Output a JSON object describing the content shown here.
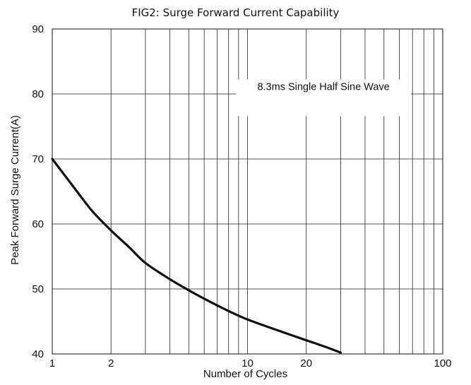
{
  "chart_data": {
    "type": "line",
    "title": "FIG2:  Surge Forward Current Capability",
    "xlabel": "Number of Cycles",
    "ylabel": "Peak Forward Surge Current(A)",
    "x_scale": "log",
    "xlim": [
      1,
      100
    ],
    "ylim": [
      40,
      90
    ],
    "x_ticks": [
      1,
      2,
      10,
      20,
      100
    ],
    "x_tick_labels": [
      "1",
      "2",
      "10",
      "20",
      "100"
    ],
    "y_ticks": [
      40,
      50,
      60,
      70,
      80,
      90
    ],
    "y_tick_labels": [
      "40",
      "50",
      "60",
      "70",
      "80",
      "90"
    ],
    "grid": true,
    "annotation": "8.3ms Single Half Sine Wave",
    "series": [
      {
        "x": [
          1,
          1.3,
          1.6,
          2,
          2.5,
          3,
          4,
          5,
          6,
          8,
          10,
          15,
          20,
          25,
          30
        ],
        "y": [
          70,
          65.5,
          62,
          59,
          56.3,
          54,
          51.5,
          49.8,
          48.5,
          46.6,
          45.3,
          43.4,
          42.1,
          41.1,
          40.2
        ]
      }
    ]
  }
}
